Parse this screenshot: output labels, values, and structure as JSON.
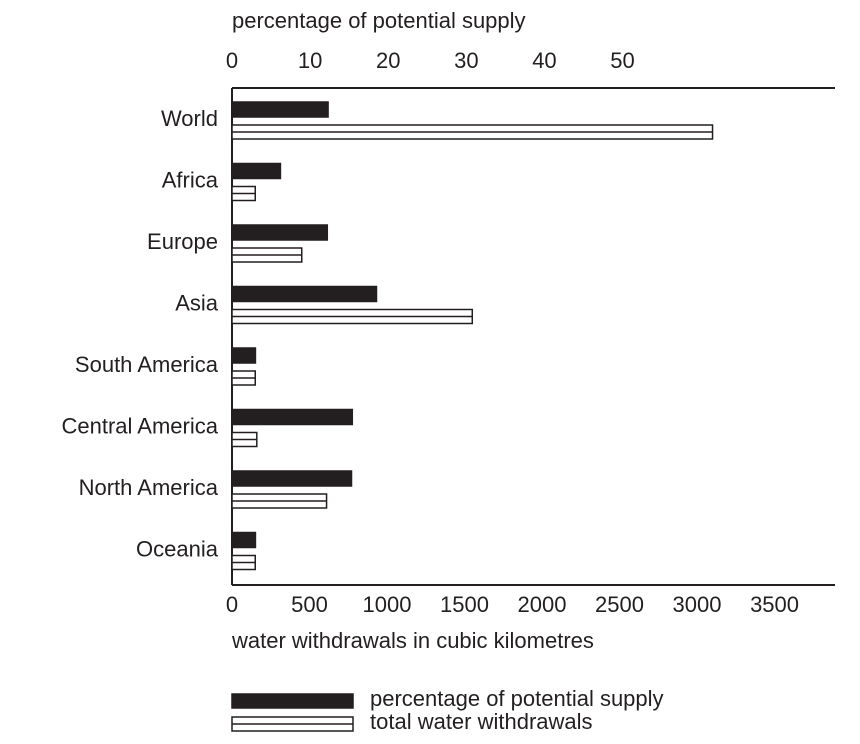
{
  "chart_data": {
    "type": "bar",
    "orientation": "horizontal",
    "x2_label": "percentage of potential supply",
    "x_label": "water withdrawals in cubic kilometres",
    "categories": [
      "World",
      "Africa",
      "Europe",
      "Asia",
      "South America",
      "Central America",
      "North America",
      "Oceania"
    ],
    "series": [
      {
        "name": "percentage of potential supply",
        "color": "#231f20",
        "axis": "x2",
        "values": [
          12.3,
          6.2,
          12.2,
          18.5,
          3,
          15.4,
          15.3,
          3
        ]
      },
      {
        "name": "total water withdrawals",
        "color": "#ffffff",
        "values": [
          3100,
          150,
          450,
          1550,
          150,
          160,
          610,
          150
        ]
      }
    ],
    "xlim": [
      0,
      3890
    ],
    "xticks": [
      0,
      500,
      1000,
      1500,
      2000,
      2500,
      3000,
      3500
    ],
    "x2lim": [
      0,
      77.2
    ],
    "x2ticks": [
      0,
      10,
      20,
      30,
      40,
      50
    ],
    "legend": "bottom"
  }
}
